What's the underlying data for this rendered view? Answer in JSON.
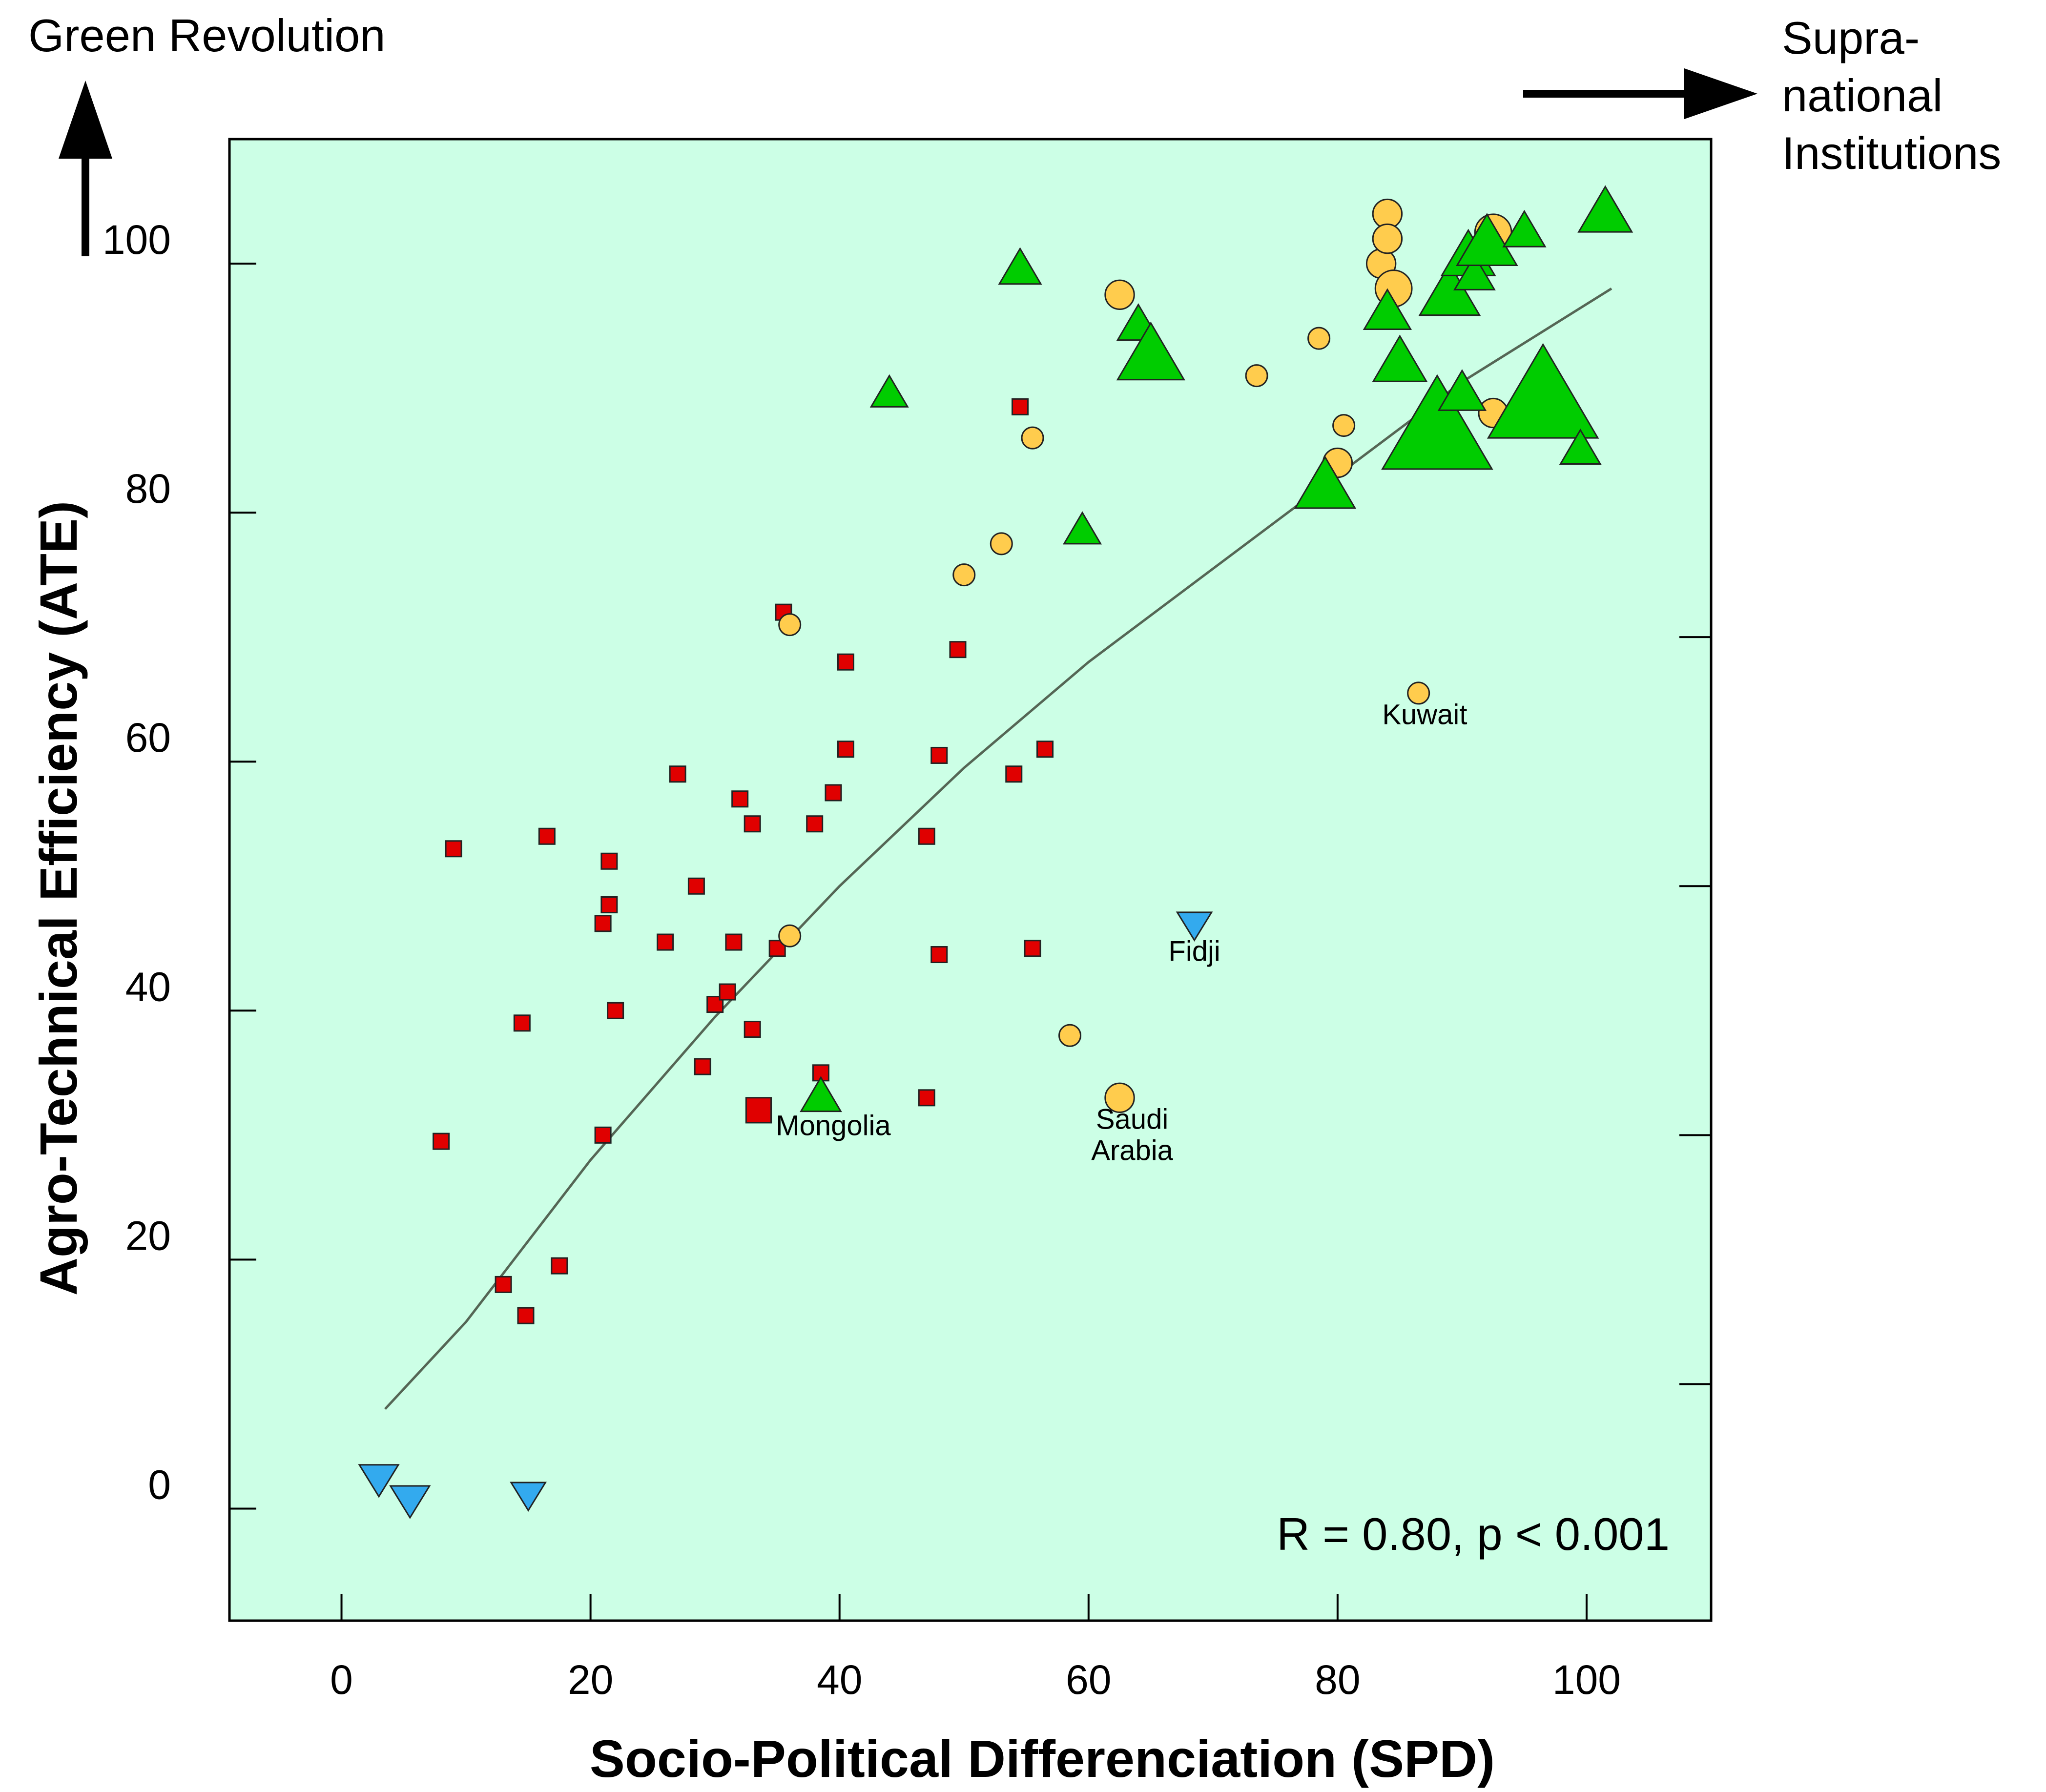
{
  "chart_data": {
    "type": "scatter",
    "title": "",
    "xlabel": "Socio-Political Differenciation (SPD)",
    "ylabel": "Agro-Technical Efficiency (ATE)",
    "xlim": [
      -9,
      110
    ],
    "ylim": [
      -9,
      110
    ],
    "xticks": [
      0,
      20,
      40,
      60,
      80,
      100
    ],
    "yticks": [
      0,
      20,
      40,
      60,
      80,
      100
    ],
    "right_ticks": [
      10,
      30,
      50,
      70
    ],
    "grid": false,
    "background": "#ccffe6",
    "corner_labels": {
      "top_left": "Green Revolution",
      "top_right": [
        "Supra-",
        "national",
        "Institutions"
      ]
    },
    "annotation": "R = 0.80, p < 0.001",
    "colors": {
      "square": "#e00000",
      "circle": "#ffcc4d",
      "triangle": "#00cc00",
      "inverted_triangle": "#33aaee",
      "trend": "#556655"
    },
    "series": [
      {
        "marker": "square",
        "points": [
          {
            "x": 8,
            "y": 29.5,
            "s": 1
          },
          {
            "x": 9,
            "y": 53,
            "s": 1
          },
          {
            "x": 13,
            "y": 18,
            "s": 1
          },
          {
            "x": 14.5,
            "y": 39,
            "s": 1
          },
          {
            "x": 14.8,
            "y": 15.5,
            "s": 1
          },
          {
            "x": 16.5,
            "y": 54,
            "s": 1
          },
          {
            "x": 17.5,
            "y": 19.5,
            "s": 1
          },
          {
            "x": 21,
            "y": 47,
            "s": 1
          },
          {
            "x": 21,
            "y": 30,
            "s": 1
          },
          {
            "x": 21.5,
            "y": 52,
            "s": 1
          },
          {
            "x": 21.5,
            "y": 48.5,
            "s": 1
          },
          {
            "x": 22,
            "y": 40,
            "s": 1
          },
          {
            "x": 26,
            "y": 45.5,
            "s": 1
          },
          {
            "x": 27,
            "y": 59,
            "s": 1
          },
          {
            "x": 28.5,
            "y": 50,
            "s": 1
          },
          {
            "x": 29,
            "y": 35.5,
            "s": 1
          },
          {
            "x": 30,
            "y": 40.5,
            "s": 1
          },
          {
            "x": 31,
            "y": 41.5,
            "s": 1
          },
          {
            "x": 31.5,
            "y": 45.5,
            "s": 1
          },
          {
            "x": 32,
            "y": 57,
            "s": 1
          },
          {
            "x": 33,
            "y": 55,
            "s": 1
          },
          {
            "x": 33,
            "y": 38.5,
            "s": 1
          },
          {
            "x": 33.5,
            "y": 32,
            "s": 1.6
          },
          {
            "x": 35,
            "y": 45,
            "s": 1
          },
          {
            "x": 35.5,
            "y": 72,
            "s": 1
          },
          {
            "x": 38,
            "y": 55,
            "s": 1
          },
          {
            "x": 38.5,
            "y": 35,
            "s": 1
          },
          {
            "x": 39.5,
            "y": 57.5,
            "s": 1
          },
          {
            "x": 40.5,
            "y": 61,
            "s": 1
          },
          {
            "x": 40.5,
            "y": 68,
            "s": 1
          },
          {
            "x": 47,
            "y": 54,
            "s": 1
          },
          {
            "x": 47,
            "y": 33,
            "s": 1
          },
          {
            "x": 48,
            "y": 60.5,
            "s": 1
          },
          {
            "x": 48,
            "y": 44.5,
            "s": 1
          },
          {
            "x": 49.5,
            "y": 69,
            "s": 1
          },
          {
            "x": 54,
            "y": 59,
            "s": 1
          },
          {
            "x": 54.5,
            "y": 88.5,
            "s": 1
          },
          {
            "x": 55.5,
            "y": 45,
            "s": 1
          },
          {
            "x": 56.5,
            "y": 61,
            "s": 1
          }
        ]
      },
      {
        "marker": "circle",
        "points": [
          {
            "x": 36,
            "y": 71,
            "s": 1
          },
          {
            "x": 36,
            "y": 46,
            "s": 1
          },
          {
            "x": 50,
            "y": 75,
            "s": 1
          },
          {
            "x": 53,
            "y": 77.5,
            "s": 1
          },
          {
            "x": 55.5,
            "y": 86,
            "s": 1
          },
          {
            "x": 58.5,
            "y": 38,
            "s": 1
          },
          {
            "x": 62.5,
            "y": 97.5,
            "s": 1.35
          },
          {
            "x": 62.5,
            "y": 33,
            "s": 1.35
          },
          {
            "x": 73.5,
            "y": 91,
            "s": 1
          },
          {
            "x": 78.5,
            "y": 94,
            "s": 1
          },
          {
            "x": 80,
            "y": 84,
            "s": 1.35
          },
          {
            "x": 80.5,
            "y": 87,
            "s": 1
          },
          {
            "x": 83.5,
            "y": 100,
            "s": 1.35
          },
          {
            "x": 84,
            "y": 104,
            "s": 1.35
          },
          {
            "x": 84,
            "y": 102,
            "s": 1.35
          },
          {
            "x": 84.5,
            "y": 98,
            "s": 1.7
          },
          {
            "x": 86.5,
            "y": 65.5,
            "s": 1
          },
          {
            "x": 92.5,
            "y": 102.5,
            "s": 1.7
          },
          {
            "x": 92.5,
            "y": 88,
            "s": 1.35
          }
        ]
      },
      {
        "marker": "triangle",
        "points": [
          {
            "x": 38.5,
            "y": 33,
            "s": 1.2
          },
          {
            "x": 44,
            "y": 89.5,
            "s": 1.1
          },
          {
            "x": 54.5,
            "y": 99.5,
            "s": 1.25
          },
          {
            "x": 59.5,
            "y": 78.5,
            "s": 1.1
          },
          {
            "x": 64,
            "y": 95,
            "s": 1.25
          },
          {
            "x": 65,
            "y": 92.5,
            "s": 2
          },
          {
            "x": 79,
            "y": 82,
            "s": 1.8
          },
          {
            "x": 84,
            "y": 96,
            "s": 1.4
          },
          {
            "x": 85,
            "y": 92,
            "s": 1.6
          },
          {
            "x": 88,
            "y": 86.5,
            "s": 3.3
          },
          {
            "x": 89,
            "y": 97.5,
            "s": 1.8
          },
          {
            "x": 90,
            "y": 89.5,
            "s": 1.4
          },
          {
            "x": 90.5,
            "y": 100.5,
            "s": 1.6
          },
          {
            "x": 91,
            "y": 99,
            "s": 1.2
          },
          {
            "x": 92,
            "y": 101.5,
            "s": 1.8
          },
          {
            "x": 95,
            "y": 102.5,
            "s": 1.25
          },
          {
            "x": 96.5,
            "y": 89,
            "s": 3.3
          },
          {
            "x": 99.5,
            "y": 85,
            "s": 1.2
          },
          {
            "x": 101.5,
            "y": 104,
            "s": 1.6
          }
        ]
      },
      {
        "marker": "inverted_triangle",
        "points": [
          {
            "x": 3,
            "y": 2.5,
            "s": 1.25
          },
          {
            "x": 5.5,
            "y": 0.8,
            "s": 1.25
          },
          {
            "x": 15,
            "y": 1.2,
            "s": 1.1
          },
          {
            "x": 68.5,
            "y": 47,
            "s": 1.1
          }
        ]
      }
    ],
    "point_labels": [
      {
        "x": 87,
        "y": 63,
        "text": "Kuwait"
      },
      {
        "x": 68.5,
        "y": 44,
        "text": "Fidji"
      },
      {
        "x": 39.5,
        "y": 30,
        "text": "Mongolia"
      },
      {
        "x": 63.5,
        "y": 30.5,
        "text": "Saudi"
      },
      {
        "x": 63.5,
        "y": 28,
        "text": "Arabia"
      }
    ],
    "trend_line": [
      {
        "x": 3.5,
        "y": 8
      },
      {
        "x": 10,
        "y": 15
      },
      {
        "x": 20,
        "y": 28
      },
      {
        "x": 30,
        "y": 39.5
      },
      {
        "x": 40,
        "y": 50
      },
      {
        "x": 50,
        "y": 59.5
      },
      {
        "x": 60,
        "y": 68
      },
      {
        "x": 70,
        "y": 75.5
      },
      {
        "x": 80,
        "y": 83
      },
      {
        "x": 90,
        "y": 90.5
      },
      {
        "x": 102,
        "y": 98
      }
    ]
  }
}
